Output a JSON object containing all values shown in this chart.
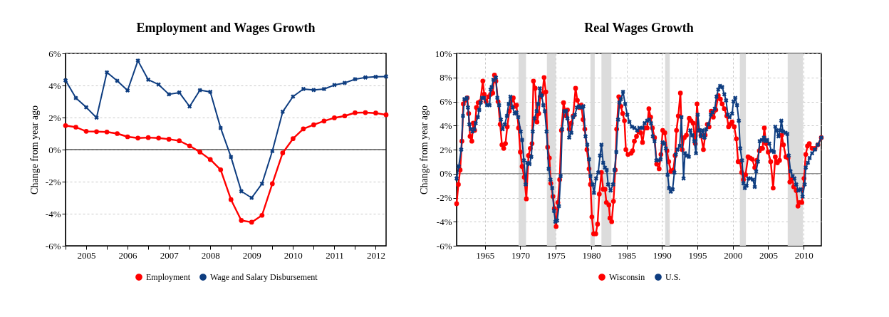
{
  "chart_data": [
    {
      "type": "line",
      "title": "Employment and Wages Growth",
      "ylabel": "Change from year ago",
      "xlim": [
        2005,
        2012.75
      ],
      "xticks": [
        {
          "value": 2005,
          "label": null
        },
        {
          "value": 2005.5,
          "label": "2005"
        },
        {
          "value": 2006,
          "label": null
        },
        {
          "value": 2006.5,
          "label": "2006"
        },
        {
          "value": 2007,
          "label": null
        },
        {
          "value": 2007.5,
          "label": "2007"
        },
        {
          "value": 2008,
          "label": null
        },
        {
          "value": 2008.5,
          "label": "2008"
        },
        {
          "value": 2009,
          "label": null
        },
        {
          "value": 2009.5,
          "label": "2009"
        },
        {
          "value": 2010,
          "label": null
        },
        {
          "value": 2010.5,
          "label": "2010"
        },
        {
          "value": 2011,
          "label": null
        },
        {
          "value": 2011.5,
          "label": "2011"
        },
        {
          "value": 2012,
          "label": null
        },
        {
          "value": 2012.5,
          "label": "2012"
        }
      ],
      "ylim": [
        -6,
        6
      ],
      "yticks": [
        {
          "value": -6,
          "label": "-6%"
        },
        {
          "value": -4,
          "label": "-4%"
        },
        {
          "value": -2,
          "label": "-2%"
        },
        {
          "value": 0,
          "label": "0%"
        },
        {
          "value": 2,
          "label": "2%"
        },
        {
          "value": 4,
          "label": "4%"
        },
        {
          "value": 6,
          "label": "6%"
        }
      ],
      "x": [
        2005,
        2005.25,
        2005.5,
        2005.75,
        2006,
        2006.25,
        2006.5,
        2006.75,
        2007,
        2007.25,
        2007.5,
        2007.75,
        2008,
        2008.25,
        2008.5,
        2008.75,
        2009,
        2009.25,
        2009.5,
        2009.75,
        2010,
        2010.25,
        2010.5,
        2010.75,
        2011,
        2011.25,
        2011.5,
        2011.75,
        2012,
        2012.25,
        2012.5,
        2012.75
      ],
      "series": [
        {
          "name": "Employment",
          "color": "#ff0000",
          "marker": "circle",
          "values": [
            1.5,
            1.4,
            1.14,
            1.12,
            1.1,
            1.0,
            0.8,
            0.72,
            0.75,
            0.72,
            0.65,
            0.55,
            0.23,
            -0.15,
            -0.62,
            -1.26,
            -3.12,
            -4.42,
            -4.53,
            -4.1,
            -2.13,
            -0.21,
            0.68,
            1.29,
            1.55,
            1.78,
            1.98,
            2.1,
            2.3,
            2.31,
            2.28,
            2.17
          ]
        },
        {
          "name": "Wage and Salary Disbursement",
          "color": "#0e3d80",
          "marker": "cross",
          "values": [
            4.32,
            3.22,
            2.64,
            1.99,
            4.82,
            4.29,
            3.69,
            5.55,
            4.36,
            4.06,
            3.45,
            3.56,
            2.69,
            3.71,
            3.6,
            1.35,
            -0.46,
            -2.6,
            -3.01,
            -2.13,
            -0.09,
            2.36,
            3.31,
            3.78,
            3.72,
            3.78,
            4.03,
            4.16,
            4.39,
            4.5,
            4.54,
            4.56
          ]
        }
      ],
      "ref_lines": [
        {
          "axis": "y",
          "value": 0,
          "color": "#000000"
        }
      ],
      "grid": "y",
      "legend": "bottom"
    },
    {
      "type": "line",
      "title": "Real Wages Growth",
      "ylabel": "Change from year ago",
      "xlim": [
        1961,
        2012.5
      ],
      "xticks": [
        1965,
        1970,
        1975,
        1980,
        1985,
        1990,
        1995,
        2000,
        2005,
        2010
      ],
      "ylim": [
        -6,
        10
      ],
      "yticks": [
        {
          "value": -6,
          "label": "-6%"
        },
        {
          "value": -4,
          "label": "-4%"
        },
        {
          "value": -2,
          "label": "-2%"
        },
        {
          "value": 0,
          "label": "0%"
        },
        {
          "value": 2,
          "label": "2%"
        },
        {
          "value": 4,
          "label": "4%"
        },
        {
          "value": 6,
          "label": "6%"
        },
        {
          "value": 8,
          "label": "8%"
        },
        {
          "value": 10,
          "label": "10%"
        }
      ],
      "series": [
        {
          "name": "Wisconsin",
          "color": "#ff0000",
          "marker": "circle",
          "x": [
            1961.0,
            1961.25,
            1961.5,
            1961.75,
            1961.95,
            1962.2,
            1962.5,
            1962.7,
            1962.9,
            1963.15,
            1963.35,
            1963.55,
            1963.8,
            1964.05,
            1964.35,
            1964.7,
            1964.9,
            1965.15,
            1965.5,
            1965.8,
            1966.1,
            1966.35,
            1966.55,
            1966.85,
            1967.15,
            1967.4,
            1967.65,
            1967.9,
            1968.15,
            1968.45,
            1968.75,
            1969.0,
            1969.25,
            1969.45,
            1969.75,
            1970.0,
            1970.25,
            1970.55,
            1970.85,
            1971.15,
            1971.4,
            1971.65,
            1971.85,
            1972.1,
            1972.35,
            1972.6,
            1972.8,
            1973.1,
            1973.35,
            1973.6,
            1973.85,
            1974.1,
            1974.3,
            1974.6,
            1974.8,
            1975.05,
            1975.3,
            1975.55,
            1975.8,
            1976.1,
            1976.45,
            1976.65,
            1976.9,
            1977.2,
            1977.45,
            1977.8,
            1978.05,
            1978.35,
            1978.6,
            1978.85,
            1979.1,
            1979.4,
            1979.7,
            1979.9,
            1980.1,
            1980.35,
            1980.65,
            1980.9,
            1981.15,
            1981.45,
            1981.7,
            1981.95,
            1982.15,
            1982.5,
            1982.65,
            1982.9,
            1983.15,
            1983.4,
            1983.6,
            1983.9,
            1984.2,
            1984.45,
            1984.7,
            1984.9,
            1985.2,
            1985.65,
            1985.85,
            1986.1,
            1986.4,
            1986.7,
            1987.0,
            1987.25,
            1987.55,
            1987.9,
            1988.15,
            1988.4,
            1988.65,
            1988.95,
            1989.25,
            1989.6,
            1989.85,
            1990.1,
            1990.4,
            1990.7,
            1990.95,
            1991.25,
            1991.6,
            1991.85,
            1992.05,
            1992.3,
            1992.6,
            1992.85,
            1993.15,
            1993.45,
            1993.85,
            1994.1,
            1994.4,
            1994.7,
            1994.95,
            1995.2,
            1995.5,
            1995.85,
            1996.1,
            1996.4,
            1996.65,
            1996.95,
            1997.25,
            1997.6,
            1997.95,
            1998.25,
            1998.5,
            1998.8,
            1999.15,
            1999.4,
            1999.6,
            1999.9,
            2000.2,
            2000.5,
            2000.75,
            2001.0,
            2001.25,
            2001.5,
            2001.8,
            2002.15,
            2002.45,
            2002.75,
            2003.1,
            2003.4,
            2003.75,
            2003.95,
            2004.2,
            2004.45,
            2004.7,
            2005.0,
            2005.35,
            2005.7,
            2006.0,
            2006.3,
            2006.6,
            2006.9,
            2007.15,
            2007.5,
            2007.8,
            2008.05,
            2008.4,
            2008.6,
            2008.95,
            2009.2,
            2009.4,
            2009.75,
            2010.05,
            2010.3,
            2010.55,
            2010.8,
            2011.2,
            2011.6,
            2012.0,
            2012.5
          ],
          "values": [
            -2.5,
            -0.9,
            0.3,
            2.7,
            5.8,
            6.1,
            6.3,
            5.0,
            3.1,
            2.7,
            4.2,
            3.6,
            5.5,
            5.9,
            6.0,
            7.7,
            6.6,
            6.0,
            6.4,
            6.6,
            6.7,
            8.2,
            7.7,
            6.0,
            4.1,
            2.4,
            2.1,
            2.5,
            3.9,
            5.2,
            6.1,
            6.3,
            5.6,
            5.7,
            3.8,
            1.8,
            0.6,
            -0.3,
            -2.1,
            1.5,
            2.1,
            2.5,
            7.7,
            7.1,
            4.3,
            5.0,
            6.4,
            6.6,
            8.0,
            6.8,
            2.2,
            1.3,
            -0.8,
            -1.9,
            -2.9,
            -4.4,
            -2.4,
            -0.5,
            3.6,
            5.9,
            4.8,
            5.3,
            3.7,
            4.2,
            4.8,
            7.1,
            6.1,
            5.5,
            5.7,
            4.5,
            3.7,
            2.0,
            0.4,
            -0.9,
            -3.6,
            -5.0,
            -5.0,
            -4.2,
            -1.7,
            0.1,
            -1.3,
            -1.3,
            -2.4,
            -2.6,
            -3.7,
            -4.0,
            -2.3,
            0.3,
            3.7,
            6.4,
            5.6,
            5.0,
            4.4,
            2.0,
            1.6,
            1.7,
            1.9,
            2.7,
            3.1,
            3.5,
            3.4,
            2.6,
            3.8,
            3.8,
            5.4,
            4.7,
            3.8,
            3.0,
            0.8,
            0.4,
            1.6,
            3.6,
            3.4,
            1.9,
            1.0,
            0.2,
            0.3,
            1.5,
            3.6,
            4.8,
            6.7,
            2.0,
            3.0,
            3.2,
            4.6,
            4.4,
            4.2,
            2.5,
            5.8,
            3.6,
            3.2,
            2.0,
            3.2,
            4.1,
            3.9,
            5.2,
            4.7,
            5.3,
            6.5,
            6.2,
            5.8,
            5.4,
            4.8,
            3.9,
            4.1,
            4.3,
            3.9,
            2.9,
            1.0,
            1.0,
            0.1,
            -0.5,
            -0.1,
            1.4,
            1.3,
            1.2,
            0.5,
            1.1,
            1.9,
            2.1,
            2.1,
            3.8,
            2.5,
            1.8,
            1.0,
            -1.2,
            1.4,
            0.9,
            1.1,
            3.2,
            2.4,
            1.4,
            1.3,
            -0.7,
            -0.4,
            -1.1,
            -1.4,
            -2.7,
            -2.4,
            -2.4,
            -0.4,
            1.6,
            2.3,
            2.5,
            2.1,
            2.1,
            2.4,
            3.0
          ]
        },
        {
          "name": "U.S.",
          "color": "#0e3d80",
          "marker": "cross",
          "x": [
            1961.0,
            1961.3,
            1961.65,
            1961.9,
            1962.1,
            1962.45,
            1962.6,
            1962.8,
            1963.0,
            1963.25,
            1963.5,
            1963.7,
            1964.0,
            1964.2,
            1964.4,
            1964.6,
            1964.85,
            1965.3,
            1965.65,
            1965.8,
            1965.95,
            1966.2,
            1966.55,
            1966.75,
            1967.0,
            1967.25,
            1967.5,
            1967.8,
            1968.1,
            1968.35,
            1968.6,
            1968.9,
            1969.2,
            1969.45,
            1969.7,
            1970.05,
            1970.25,
            1970.5,
            1970.75,
            1971.0,
            1971.3,
            1971.55,
            1971.75,
            1972.0,
            1972.3,
            1972.5,
            1972.75,
            1973.0,
            1973.25,
            1973.45,
            1973.7,
            1974.0,
            1974.25,
            1974.5,
            1974.75,
            1974.95,
            1975.2,
            1975.45,
            1975.7,
            1975.9,
            1976.2,
            1976.45,
            1976.65,
            1976.9,
            1977.2,
            1977.45,
            1977.7,
            1978.0,
            1978.25,
            1978.6,
            1978.9,
            1979.2,
            1979.45,
            1979.7,
            1979.9,
            1980.2,
            1980.4,
            1980.7,
            1981.0,
            1981.25,
            1981.45,
            1981.7,
            1981.95,
            1982.2,
            1982.4,
            1982.75,
            1983.1,
            1983.3,
            1983.55,
            1983.8,
            1984.0,
            1984.2,
            1984.5,
            1984.8,
            1985.1,
            1985.4,
            1985.75,
            1986.1,
            1986.5,
            1986.8,
            1987.25,
            1987.55,
            1987.9,
            1988.2,
            1988.45,
            1988.7,
            1988.95,
            1989.2,
            1989.5,
            1989.8,
            1990.1,
            1990.35,
            1990.55,
            1990.8,
            1991.0,
            1991.25,
            1991.5,
            1991.75,
            1991.95,
            1992.2,
            1992.5,
            1992.75,
            1993.05,
            1993.25,
            1993.5,
            1993.8,
            1994.0,
            1994.3,
            1994.55,
            1994.8,
            1995.05,
            1995.3,
            1995.5,
            1995.75,
            1996.0,
            1996.25,
            1996.55,
            1996.9,
            1997.15,
            1997.45,
            1997.7,
            1997.95,
            1998.2,
            1998.5,
            1998.8,
            1999.05,
            1999.3,
            1999.55,
            1999.9,
            2000.1,
            2000.35,
            2000.6,
            2000.85,
            2001.05,
            2001.3,
            2001.5,
            2001.7,
            2001.95,
            2002.2,
            2002.5,
            2002.85,
            2003.1,
            2003.3,
            2003.55,
            2003.8,
            2004.1,
            2004.4,
            2004.6,
            2004.85,
            2005.15,
            2005.45,
            2005.8,
            2006.0,
            2006.2,
            2006.45,
            2006.7,
            2006.85,
            2007.1,
            2007.45,
            2007.7,
            2007.9,
            2008.15,
            2008.45,
            2008.7,
            2008.95,
            2009.25,
            2009.6,
            2009.85,
            2010.15,
            2010.3,
            2010.6,
            2010.85,
            2011.2,
            2011.6,
            2012.0,
            2012.5
          ],
          "values": [
            -0.4,
            0.6,
            2.0,
            4.8,
            6.2,
            6.3,
            5.5,
            4.1,
            3.7,
            3.5,
            3.7,
            4.2,
            4.7,
            5.3,
            5.9,
            6.3,
            6.3,
            5.7,
            5.7,
            7.0,
            7.2,
            7.8,
            8.0,
            6.3,
            5.7,
            4.5,
            3.7,
            4.1,
            4.8,
            5.8,
            6.4,
            5.5,
            5.0,
            5.1,
            4.7,
            3.5,
            2.8,
            1.1,
            -0.9,
            0.9,
            0.8,
            1.4,
            3.5,
            4.6,
            5.2,
            5.8,
            7.1,
            6.5,
            5.7,
            5.2,
            3.5,
            0.4,
            -0.5,
            -1.2,
            -3.1,
            -4.0,
            -3.9,
            -2.7,
            -0.2,
            3.7,
            5.2,
            5.2,
            4.6,
            3.0,
            3.4,
            4.7,
            4.9,
            5.5,
            5.6,
            5.5,
            5.6,
            3.1,
            2.4,
            1.2,
            -0.2,
            -0.9,
            -1.6,
            -0.4,
            0.1,
            1.5,
            2.4,
            0.9,
            0.5,
            0.3,
            -0.9,
            -1.4,
            -0.9,
            0.3,
            1.8,
            4.5,
            5.9,
            6.2,
            6.8,
            5.8,
            4.9,
            4.3,
            3.9,
            3.8,
            3.6,
            3.8,
            3.8,
            4.2,
            4.4,
            4.5,
            4.2,
            3.1,
            2.7,
            1.1,
            1.1,
            1.2,
            2.6,
            2.5,
            2.1,
            -0.1,
            -1.2,
            -1.5,
            -1.3,
            0.1,
            1.6,
            2.0,
            2.3,
            4.7,
            -0.4,
            1.7,
            1.5,
            1.4,
            3.6,
            3.2,
            2.7,
            1.7,
            4.9,
            3.6,
            3.1,
            3.6,
            3.0,
            3.7,
            4.1,
            4.9,
            5.1,
            5.4,
            6.4,
            7.0,
            7.3,
            7.2,
            6.6,
            6.1,
            4.9,
            4.7,
            5.0,
            6.0,
            6.3,
            5.7,
            4.4,
            2.1,
            1.1,
            -0.8,
            -1.2,
            -1.0,
            -0.4,
            -0.4,
            -0.5,
            -1.1,
            0.2,
            1.0,
            2.7,
            2.8,
            3.0,
            2.7,
            2.8,
            2.5,
            1.9,
            1.8,
            3.9,
            3.6,
            3.1,
            3.6,
            4.4,
            3.5,
            3.4,
            3.3,
            1.5,
            0.2,
            -0.2,
            -0.4,
            -0.9,
            -1.4,
            -1.3,
            -1.9,
            -0.9,
            0.5,
            0.9,
            1.3,
            1.7,
            2.0,
            2.4,
            3.0
          ]
        }
      ],
      "bands": [
        {
          "axis": "x",
          "from": 1969.75,
          "to": 1970.8,
          "color": "#dcdcdc"
        },
        {
          "axis": "x",
          "from": 1973.75,
          "to": 1975.0,
          "color": "#dcdcdc"
        },
        {
          "axis": "x",
          "from": 1979.9,
          "to": 1980.5,
          "color": "#dcdcdc"
        },
        {
          "axis": "x",
          "from": 1981.45,
          "to": 1982.85,
          "color": "#dcdcdc"
        },
        {
          "axis": "x",
          "from": 1990.45,
          "to": 1991.1,
          "color": "#dcdcdc"
        },
        {
          "axis": "x",
          "from": 2001.0,
          "to": 2001.85,
          "color": "#dcdcdc"
        },
        {
          "axis": "x",
          "from": 2007.75,
          "to": 2009.9,
          "color": "#dcdcdc"
        }
      ],
      "ref_lines": [
        {
          "axis": "y",
          "value": 0,
          "color": "#707070"
        }
      ],
      "grid": true,
      "legend": "bottom"
    }
  ]
}
